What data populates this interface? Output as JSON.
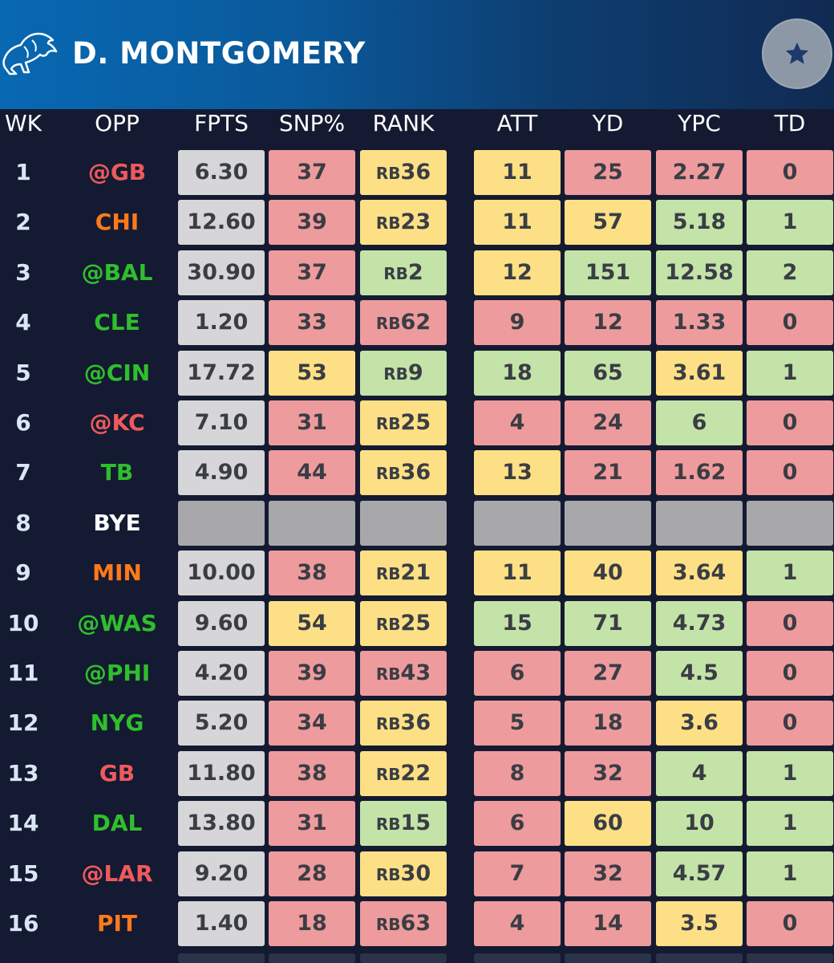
{
  "header": {
    "player_name": "D. MONTGOMERY",
    "logo_icon": "lion-logo-icon",
    "favorite_icon": "star-icon"
  },
  "columns": [
    "WK",
    "OPP",
    "FPTS",
    "SNP%",
    "RANK",
    "ATT",
    "YD",
    "YPC",
    "TD"
  ],
  "colors": {
    "red": "#ee9b9d",
    "yellow": "#fde085",
    "green": "#c4e3a8",
    "gray": "#d6d6d8",
    "bye": "#a8a8ab",
    "opp_red": "#ee5a5c",
    "opp_orange": "#ff7a1a",
    "opp_green": "#2fbf2c",
    "opp_white": "#ffffff"
  },
  "rows": [
    {
      "wk": "1",
      "opp": "@GB",
      "opp_color": "red",
      "fpts": "6.30",
      "snp": "37",
      "snp_c": "red",
      "rank": "36",
      "rank_c": "yellow",
      "att": "11",
      "att_c": "yellow",
      "yd": "25",
      "yd_c": "red",
      "ypc": "2.27",
      "ypc_c": "red",
      "td": "0",
      "td_c": "red"
    },
    {
      "wk": "2",
      "opp": "CHI",
      "opp_color": "orange",
      "fpts": "12.60",
      "snp": "39",
      "snp_c": "red",
      "rank": "23",
      "rank_c": "yellow",
      "att": "11",
      "att_c": "yellow",
      "yd": "57",
      "yd_c": "yellow",
      "ypc": "5.18",
      "ypc_c": "green",
      "td": "1",
      "td_c": "green"
    },
    {
      "wk": "3",
      "opp": "@BAL",
      "opp_color": "green",
      "fpts": "30.90",
      "snp": "37",
      "snp_c": "red",
      "rank": "2",
      "rank_c": "green",
      "att": "12",
      "att_c": "yellow",
      "yd": "151",
      "yd_c": "green",
      "ypc": "12.58",
      "ypc_c": "green",
      "td": "2",
      "td_c": "green"
    },
    {
      "wk": "4",
      "opp": "CLE",
      "opp_color": "green",
      "fpts": "1.20",
      "snp": "33",
      "snp_c": "red",
      "rank": "62",
      "rank_c": "red",
      "att": "9",
      "att_c": "red",
      "yd": "12",
      "yd_c": "red",
      "ypc": "1.33",
      "ypc_c": "red",
      "td": "0",
      "td_c": "red"
    },
    {
      "wk": "5",
      "opp": "@CIN",
      "opp_color": "green",
      "fpts": "17.72",
      "snp": "53",
      "snp_c": "yellow",
      "rank": "9",
      "rank_c": "green",
      "att": "18",
      "att_c": "green",
      "yd": "65",
      "yd_c": "green",
      "ypc": "3.61",
      "ypc_c": "yellow",
      "td": "1",
      "td_c": "green"
    },
    {
      "wk": "6",
      "opp": "@KC",
      "opp_color": "red",
      "fpts": "7.10",
      "snp": "31",
      "snp_c": "red",
      "rank": "25",
      "rank_c": "yellow",
      "att": "4",
      "att_c": "red",
      "yd": "24",
      "yd_c": "red",
      "ypc": "6",
      "ypc_c": "green",
      "td": "0",
      "td_c": "red"
    },
    {
      "wk": "7",
      "opp": "TB",
      "opp_color": "green",
      "fpts": "4.90",
      "snp": "44",
      "snp_c": "red",
      "rank": "36",
      "rank_c": "yellow",
      "att": "13",
      "att_c": "yellow",
      "yd": "21",
      "yd_c": "red",
      "ypc": "1.62",
      "ypc_c": "red",
      "td": "0",
      "td_c": "red"
    },
    {
      "wk": "8",
      "opp": "BYE",
      "opp_color": "white",
      "bye": true
    },
    {
      "wk": "9",
      "opp": "MIN",
      "opp_color": "orange",
      "fpts": "10.00",
      "snp": "38",
      "snp_c": "red",
      "rank": "21",
      "rank_c": "yellow",
      "att": "11",
      "att_c": "yellow",
      "yd": "40",
      "yd_c": "yellow",
      "ypc": "3.64",
      "ypc_c": "yellow",
      "td": "1",
      "td_c": "green"
    },
    {
      "wk": "10",
      "opp": "@WAS",
      "opp_color": "green",
      "fpts": "9.60",
      "snp": "54",
      "snp_c": "yellow",
      "rank": "25",
      "rank_c": "yellow",
      "att": "15",
      "att_c": "green",
      "yd": "71",
      "yd_c": "green",
      "ypc": "4.73",
      "ypc_c": "green",
      "td": "0",
      "td_c": "red"
    },
    {
      "wk": "11",
      "opp": "@PHI",
      "opp_color": "green",
      "fpts": "4.20",
      "snp": "39",
      "snp_c": "red",
      "rank": "43",
      "rank_c": "red",
      "att": "6",
      "att_c": "red",
      "yd": "27",
      "yd_c": "red",
      "ypc": "4.5",
      "ypc_c": "green",
      "td": "0",
      "td_c": "red"
    },
    {
      "wk": "12",
      "opp": "NYG",
      "opp_color": "green",
      "fpts": "5.20",
      "snp": "34",
      "snp_c": "red",
      "rank": "36",
      "rank_c": "yellow",
      "att": "5",
      "att_c": "red",
      "yd": "18",
      "yd_c": "red",
      "ypc": "3.6",
      "ypc_c": "yellow",
      "td": "0",
      "td_c": "red"
    },
    {
      "wk": "13",
      "opp": "GB",
      "opp_color": "red",
      "fpts": "11.80",
      "snp": "38",
      "snp_c": "red",
      "rank": "22",
      "rank_c": "yellow",
      "att": "8",
      "att_c": "red",
      "yd": "32",
      "yd_c": "red",
      "ypc": "4",
      "ypc_c": "green",
      "td": "1",
      "td_c": "green"
    },
    {
      "wk": "14",
      "opp": "DAL",
      "opp_color": "green",
      "fpts": "13.80",
      "snp": "31",
      "snp_c": "red",
      "rank": "15",
      "rank_c": "green",
      "att": "6",
      "att_c": "red",
      "yd": "60",
      "yd_c": "yellow",
      "ypc": "10",
      "ypc_c": "green",
      "td": "1",
      "td_c": "green"
    },
    {
      "wk": "15",
      "opp": "@LAR",
      "opp_color": "red",
      "fpts": "9.20",
      "snp": "28",
      "snp_c": "red",
      "rank": "30",
      "rank_c": "yellow",
      "att": "7",
      "att_c": "red",
      "yd": "32",
      "yd_c": "red",
      "ypc": "4.57",
      "ypc_c": "green",
      "td": "1",
      "td_c": "green"
    },
    {
      "wk": "16",
      "opp": "PIT",
      "opp_color": "orange",
      "fpts": "1.40",
      "snp": "18",
      "snp_c": "red",
      "rank": "63",
      "rank_c": "red",
      "att": "4",
      "att_c": "red",
      "yd": "14",
      "yd_c": "red",
      "ypc": "3.5",
      "ypc_c": "yellow",
      "td": "0",
      "td_c": "red"
    }
  ],
  "rank_prefix": "RB"
}
